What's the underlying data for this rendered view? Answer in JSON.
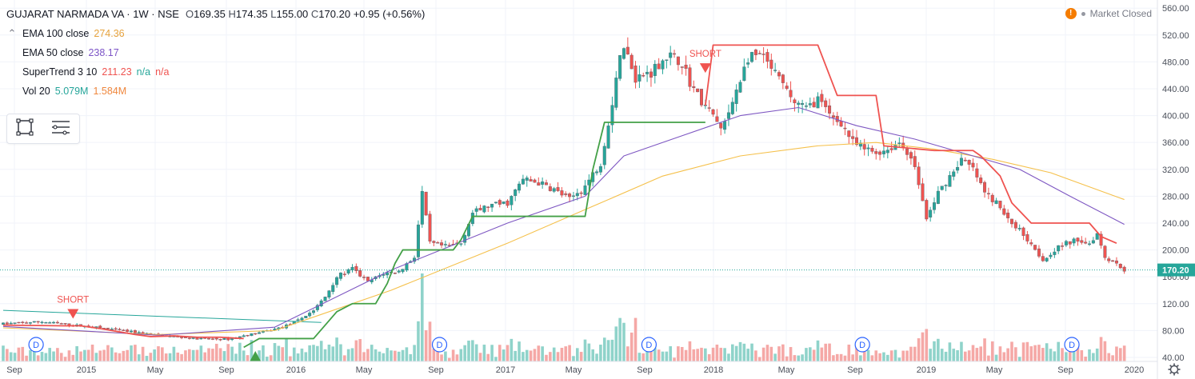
{
  "header": {
    "symbol": "GUJARAT NARMADA VA · 1W · NSE",
    "open_label": "O",
    "open": "169.35",
    "high_label": "H",
    "high": "174.35",
    "low_label": "L",
    "low": "155.00",
    "close_label": "C",
    "close": "170.20",
    "change": "+0.95 (+0.56%)",
    "status": "Market Closed"
  },
  "indicators": [
    {
      "name": "EMA 100 close",
      "values": [
        "274.36"
      ]
    },
    {
      "name": "EMA 50 close",
      "values": [
        "238.17"
      ]
    },
    {
      "name": "SuperTrend 3 10",
      "values": [
        "211.23",
        "n/a",
        "n/a"
      ]
    },
    {
      "name": "Vol 20",
      "values": [
        "5.079M",
        "1.584M"
      ]
    }
  ],
  "colors": {
    "up": "#26a69a",
    "down": "#ef5350",
    "ema100": "#f5c04a",
    "ema50": "#7e57c2",
    "supertrend_up": "#43a047",
    "supertrend_down": "#ef5350",
    "trendline": "#26a69a",
    "grid": "#f0f3fa",
    "price_tag": "#26a69a"
  },
  "chart_data": {
    "type": "candlestick",
    "interval": "1W",
    "y_ticks": [
      "560.00",
      "520.00",
      "480.00",
      "440.00",
      "400.00",
      "360.00",
      "320.00",
      "280.00",
      "240.00",
      "200.00",
      "160.00",
      "120.00",
      "80.00",
      "40.00"
    ],
    "x_ticks": [
      "Sep",
      "2015",
      "May",
      "Sep",
      "2016",
      "May",
      "Sep",
      "2017",
      "May",
      "Sep",
      "2018",
      "May",
      "Sep",
      "2019",
      "May",
      "Sep",
      "2020"
    ],
    "ylim": [
      34,
      565
    ],
    "last_price": "170.20",
    "annotations": [
      "SHORT",
      "SHORT"
    ],
    "dividend_marker": "D",
    "price_waypoints": [
      [
        0,
        90
      ],
      [
        10,
        93
      ],
      [
        18,
        88
      ],
      [
        25,
        84
      ],
      [
        33,
        78
      ],
      [
        42,
        72
      ],
      [
        50,
        68
      ],
      [
        58,
        67
      ],
      [
        62,
        72
      ],
      [
        67,
        78
      ],
      [
        72,
        85
      ],
      [
        76,
        95
      ],
      [
        80,
        110
      ],
      [
        83,
        130
      ],
      [
        86,
        160
      ],
      [
        90,
        172
      ],
      [
        94,
        152
      ],
      [
        98,
        165
      ],
      [
        102,
        168
      ],
      [
        106,
        190
      ],
      [
        108,
        285
      ],
      [
        110,
        210
      ],
      [
        114,
        205
      ],
      [
        118,
        210
      ],
      [
        121,
        255
      ],
      [
        125,
        265
      ],
      [
        130,
        270
      ],
      [
        134,
        305
      ],
      [
        138,
        300
      ],
      [
        142,
        290
      ],
      [
        146,
        275
      ],
      [
        150,
        295
      ],
      [
        154,
        330
      ],
      [
        157,
        420
      ],
      [
        159,
        495
      ],
      [
        161,
        490
      ],
      [
        163,
        455
      ],
      [
        167,
        465
      ],
      [
        171,
        490
      ],
      [
        175,
        480
      ],
      [
        177,
        450
      ],
      [
        180,
        420
      ],
      [
        183,
        400
      ],
      [
        185,
        380
      ],
      [
        187,
        400
      ],
      [
        189,
        440
      ],
      [
        192,
        485
      ],
      [
        195,
        490
      ],
      [
        198,
        470
      ],
      [
        201,
        445
      ],
      [
        204,
        420
      ],
      [
        207,
        410
      ],
      [
        210,
        425
      ],
      [
        213,
        400
      ],
      [
        216,
        390
      ],
      [
        219,
        360
      ],
      [
        222,
        350
      ],
      [
        225,
        345
      ],
      [
        228,
        350
      ],
      [
        231,
        360
      ],
      [
        234,
        340
      ],
      [
        236,
        300
      ],
      [
        238,
        245
      ],
      [
        241,
        285
      ],
      [
        244,
        310
      ],
      [
        247,
        335
      ],
      [
        250,
        320
      ],
      [
        253,
        285
      ],
      [
        256,
        270
      ],
      [
        259,
        245
      ],
      [
        262,
        230
      ],
      [
        265,
        210
      ],
      [
        268,
        185
      ],
      [
        271,
        200
      ],
      [
        274,
        210
      ],
      [
        277,
        215
      ],
      [
        280,
        210
      ],
      [
        282,
        225
      ],
      [
        284,
        190
      ],
      [
        287,
        180
      ],
      [
        289,
        170
      ]
    ],
    "supertrend_down_1": [
      [
        0,
        88
      ],
      [
        16,
        87
      ],
      [
        20,
        87
      ],
      [
        26,
        82
      ],
      [
        30,
        78
      ],
      [
        34,
        74
      ],
      [
        38,
        71
      ],
      [
        44,
        72
      ],
      [
        50,
        70
      ],
      [
        56,
        70
      ],
      [
        62,
        68
      ]
    ],
    "supertrend_up_1": [
      [
        62,
        55
      ],
      [
        66,
        68
      ],
      [
        74,
        68
      ],
      [
        80,
        68
      ],
      [
        86,
        108
      ],
      [
        90,
        120
      ],
      [
        96,
        120
      ],
      [
        99,
        150
      ],
      [
        101,
        180
      ],
      [
        103,
        200
      ],
      [
        108,
        200
      ],
      [
        116,
        200
      ],
      [
        118,
        215
      ],
      [
        121,
        250
      ],
      [
        130,
        250
      ],
      [
        140,
        250
      ],
      [
        150,
        250
      ],
      [
        152,
        320
      ],
      [
        155,
        390
      ],
      [
        165,
        390
      ],
      [
        178,
        390
      ],
      [
        181,
        390
      ]
    ],
    "supertrend_down_2": [
      [
        181,
        415
      ],
      [
        183,
        505
      ],
      [
        200,
        505
      ],
      [
        210,
        505
      ],
      [
        213,
        460
      ],
      [
        215,
        430
      ],
      [
        225,
        430
      ],
      [
        227,
        355
      ],
      [
        240,
        348
      ],
      [
        250,
        348
      ],
      [
        252,
        340
      ],
      [
        257,
        310
      ],
      [
        260,
        270
      ],
      [
        265,
        240
      ],
      [
        280,
        240
      ],
      [
        283,
        220
      ],
      [
        287,
        210
      ]
    ],
    "ema100_path": [
      [
        0,
        84
      ],
      [
        40,
        74
      ],
      [
        70,
        80
      ],
      [
        100,
        140
      ],
      [
        130,
        210
      ],
      [
        150,
        260
      ],
      [
        170,
        310
      ],
      [
        190,
        340
      ],
      [
        210,
        355
      ],
      [
        225,
        360
      ],
      [
        240,
        350
      ],
      [
        255,
        335
      ],
      [
        270,
        315
      ],
      [
        289,
        275
      ]
    ],
    "ema50_path": [
      [
        0,
        86
      ],
      [
        40,
        73
      ],
      [
        70,
        85
      ],
      [
        100,
        170
      ],
      [
        130,
        240
      ],
      [
        150,
        280
      ],
      [
        160,
        340
      ],
      [
        175,
        370
      ],
      [
        190,
        400
      ],
      [
        205,
        412
      ],
      [
        220,
        385
      ],
      [
        235,
        365
      ],
      [
        250,
        340
      ],
      [
        262,
        320
      ],
      [
        275,
        280
      ],
      [
        289,
        238
      ]
    ],
    "trendline": [
      [
        0,
        110
      ],
      [
        82,
        92
      ]
    ]
  }
}
